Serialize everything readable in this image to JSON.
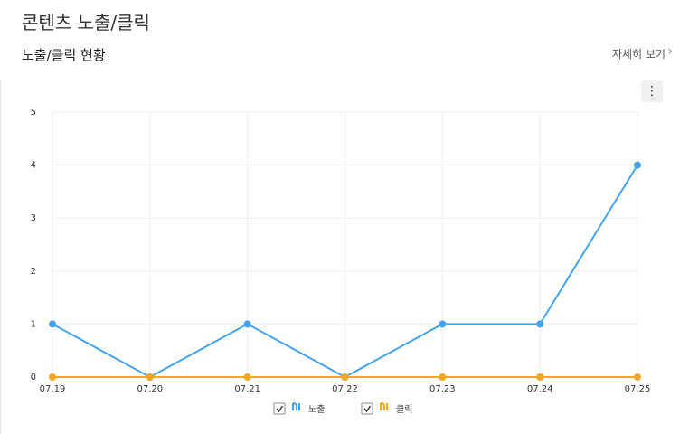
{
  "header": {
    "title": "콘텐츠 노출/클릭",
    "subtitle": "노출/클릭 현황",
    "link": "자세히 보기"
  },
  "chart_data": {
    "type": "line",
    "categories": [
      "07.19",
      "07.20",
      "07.21",
      "07.22",
      "07.23",
      "07.24",
      "07.25"
    ],
    "series": [
      {
        "name": "노출",
        "color": "#45a3ea",
        "values": [
          1,
          0,
          1,
          0,
          1,
          1,
          4
        ]
      },
      {
        "name": "클릭",
        "color": "#f5a623",
        "values": [
          0,
          0,
          0,
          0,
          0,
          0,
          0
        ]
      }
    ],
    "ylim": [
      0,
      5
    ],
    "yticks": [
      0,
      1,
      2,
      3,
      4,
      5
    ],
    "grid": true
  }
}
